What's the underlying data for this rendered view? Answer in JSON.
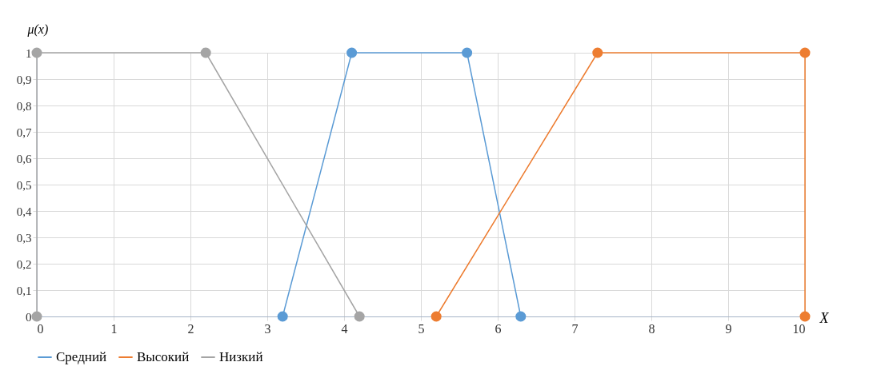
{
  "chart_data": {
    "type": "line",
    "xlabel": "X",
    "ylabel": "μ(x)",
    "xlim": [
      0,
      10
    ],
    "xticks": [
      0,
      1,
      2,
      3,
      4,
      5,
      6,
      7,
      8,
      9,
      10
    ],
    "ylim": [
      0,
      1
    ],
    "yticks": [
      0,
      {
        "value": 0.1,
        "label": "0,1"
      },
      {
        "value": 0.2,
        "label": "0,2"
      },
      {
        "value": 0.3,
        "label": "0,3"
      },
      {
        "value": 0.4,
        "label": "0,4"
      },
      {
        "value": 0.5,
        "label": "0,5"
      },
      {
        "value": 0.6,
        "label": "0,6"
      },
      {
        "value": 0.7,
        "label": "0,7"
      },
      {
        "value": 0.8,
        "label": "0,8"
      },
      {
        "value": 0.9,
        "label": "0,9"
      },
      1
    ],
    "grid": true,
    "legend": "bottom",
    "marker": "circle",
    "series": [
      {
        "name": "Средний",
        "color": "#5b9bd5",
        "x": [
          3.2,
          4.1,
          5.6,
          6.3
        ],
        "values": [
          0,
          1,
          1,
          0
        ]
      },
      {
        "name": "Высокий",
        "color": "#ed7d31",
        "x": [
          5.2,
          7.3,
          10,
          10
        ],
        "values": [
          0,
          1,
          1,
          0
        ]
      },
      {
        "name": "Низкий",
        "color": "#a5a5a5",
        "x": [
          0,
          0,
          2.2,
          4.2
        ],
        "values": [
          0,
          1,
          1,
          0
        ]
      }
    ]
  }
}
